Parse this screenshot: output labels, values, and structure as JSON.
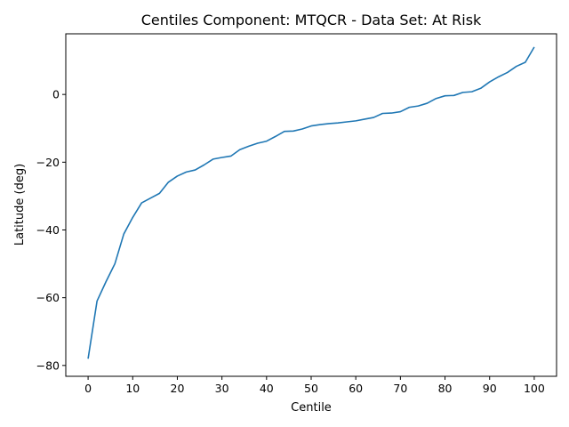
{
  "chart_data": {
    "type": "line",
    "title": "Centiles Component: MTQCR - Data Set: At Risk",
    "xlabel": "Centile",
    "ylabel": "Latitude (deg)",
    "xlim": [
      -5,
      105
    ],
    "ylim": [
      -83.2,
      17.9
    ],
    "xticks": [
      0,
      10,
      20,
      30,
      40,
      50,
      60,
      70,
      80,
      90,
      100
    ],
    "yticks": [
      -80,
      -60,
      -40,
      -20,
      0
    ],
    "grid": false,
    "line_color": "#1f77b4",
    "series": [
      {
        "x": [
          0,
          2,
          4,
          6,
          8,
          10,
          12,
          14,
          16,
          18,
          20,
          22,
          24,
          26,
          28,
          30,
          32,
          34,
          36,
          38,
          40,
          42,
          44,
          46,
          48,
          50,
          52,
          54,
          56,
          58,
          60,
          62,
          64,
          66,
          68,
          70,
          72,
          74,
          76,
          78,
          80,
          82,
          84,
          86,
          88,
          90,
          92,
          94,
          96,
          98,
          100
        ],
        "y": [
          -78.0,
          -61.0,
          -55.3,
          -50.0,
          -41.2,
          -36.3,
          -32.0,
          -30.6,
          -29.2,
          -25.9,
          -24.1,
          -22.9,
          -22.3,
          -20.8,
          -19.1,
          -18.6,
          -18.2,
          -16.3,
          -15.3,
          -14.4,
          -13.8,
          -12.4,
          -10.9,
          -10.8,
          -10.2,
          -9.3,
          -8.9,
          -8.6,
          -8.4,
          -8.1,
          -7.8,
          -7.3,
          -6.8,
          -5.6,
          -5.5,
          -5.1,
          -3.8,
          -3.4,
          -2.6,
          -1.2,
          -0.4,
          -0.3,
          0.6,
          0.8,
          1.8,
          3.7,
          5.2,
          6.5,
          8.3,
          9.5,
          14.0
        ]
      }
    ]
  }
}
